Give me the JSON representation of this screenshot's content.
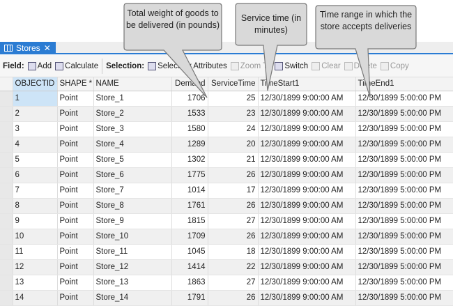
{
  "tab": {
    "title": "Stores",
    "close": "✕"
  },
  "toolbar": {
    "field_label": "Field:",
    "add": "Add",
    "calculate": "Calculate",
    "selection_label": "Selection:",
    "select_by_attributes": "Select By Attributes",
    "zoom_to": "Zoom To",
    "switch": "Switch",
    "clear": "Clear",
    "delete": "Delete",
    "copy": "Copy"
  },
  "callouts": {
    "demand": "Total weight of goods to be delivered (in pounds)",
    "service": "Service time (in minutes)",
    "time": "Time range in which the store accepts deliveries"
  },
  "columns": [
    "OBJECTID *",
    "SHAPE *",
    "NAME",
    "Demand",
    "ServiceTime",
    "TimeStart1",
    "TimeEnd1"
  ],
  "rows": [
    [
      "1",
      "Point",
      "Store_1",
      "1706",
      "25",
      "12/30/1899 9:00:00 AM",
      "12/30/1899 5:00:00 PM"
    ],
    [
      "2",
      "Point",
      "Store_2",
      "1533",
      "23",
      "12/30/1899 9:00:00 AM",
      "12/30/1899 5:00:00 PM"
    ],
    [
      "3",
      "Point",
      "Store_3",
      "1580",
      "24",
      "12/30/1899 9:00:00 AM",
      "12/30/1899 5:00:00 PM"
    ],
    [
      "4",
      "Point",
      "Store_4",
      "1289",
      "20",
      "12/30/1899 9:00:00 AM",
      "12/30/1899 5:00:00 PM"
    ],
    [
      "5",
      "Point",
      "Store_5",
      "1302",
      "21",
      "12/30/1899 9:00:00 AM",
      "12/30/1899 5:00:00 PM"
    ],
    [
      "6",
      "Point",
      "Store_6",
      "1775",
      "26",
      "12/30/1899 9:00:00 AM",
      "12/30/1899 5:00:00 PM"
    ],
    [
      "7",
      "Point",
      "Store_7",
      "1014",
      "17",
      "12/30/1899 9:00:00 AM",
      "12/30/1899 5:00:00 PM"
    ],
    [
      "8",
      "Point",
      "Store_8",
      "1761",
      "26",
      "12/30/1899 9:00:00 AM",
      "12/30/1899 5:00:00 PM"
    ],
    [
      "9",
      "Point",
      "Store_9",
      "1815",
      "27",
      "12/30/1899 9:00:00 AM",
      "12/30/1899 5:00:00 PM"
    ],
    [
      "10",
      "Point",
      "Store_10",
      "1709",
      "26",
      "12/30/1899 9:00:00 AM",
      "12/30/1899 5:00:00 PM"
    ],
    [
      "11",
      "Point",
      "Store_11",
      "1045",
      "18",
      "12/30/1899 9:00:00 AM",
      "12/30/1899 5:00:00 PM"
    ],
    [
      "12",
      "Point",
      "Store_12",
      "1414",
      "22",
      "12/30/1899 9:00:00 AM",
      "12/30/1899 5:00:00 PM"
    ],
    [
      "13",
      "Point",
      "Store_13",
      "1863",
      "27",
      "12/30/1899 9:00:00 AM",
      "12/30/1899 5:00:00 PM"
    ],
    [
      "14",
      "Point",
      "Store_14",
      "1791",
      "26",
      "12/30/1899 9:00:00 AM",
      "12/30/1899 5:00:00 PM"
    ]
  ]
}
